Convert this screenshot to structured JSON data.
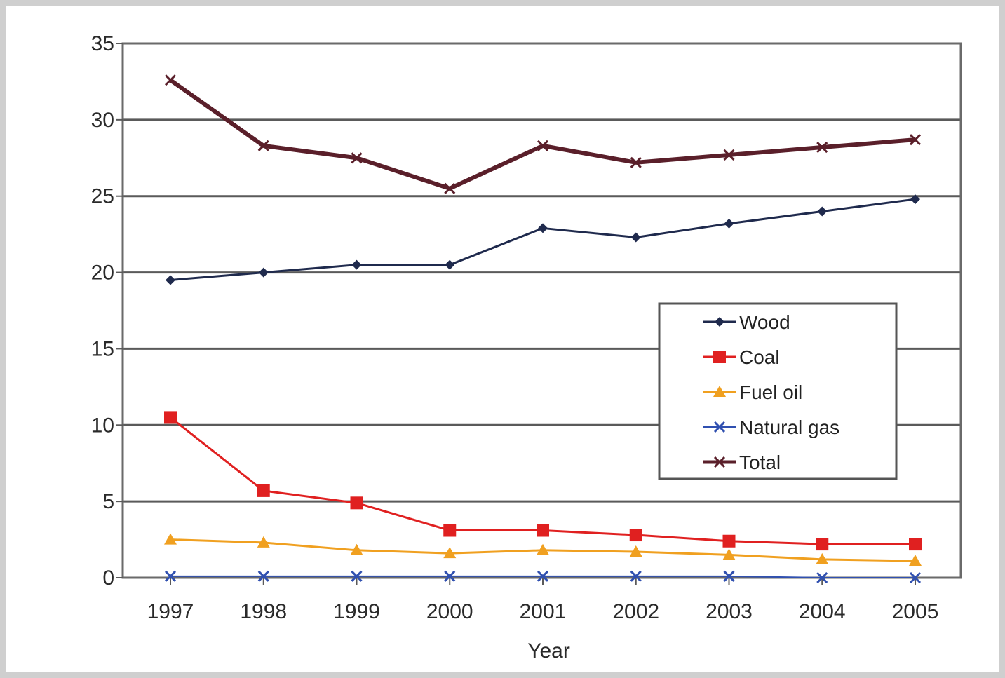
{
  "chart_data": {
    "type": "line",
    "title": "",
    "xlabel": "Year",
    "ylabel": "",
    "categories": [
      "1997",
      "1998",
      "1999",
      "2000",
      "2001",
      "2002",
      "2003",
      "2004",
      "2005"
    ],
    "ylim": [
      0,
      35
    ],
    "yticks": [
      "0",
      "5",
      "10",
      "15",
      "20",
      "25",
      "30",
      "35"
    ],
    "grid": "horizontal",
    "legend_position": "right-center",
    "series": [
      {
        "name": "Wood",
        "color": "#1f2a4d",
        "marker": "diamond",
        "values": [
          19.5,
          20.0,
          20.5,
          20.5,
          22.9,
          22.3,
          23.2,
          24.0,
          24.8
        ]
      },
      {
        "name": "Coal",
        "color": "#e02020",
        "marker": "square",
        "values": [
          10.5,
          5.7,
          4.9,
          3.1,
          3.1,
          2.8,
          2.4,
          2.2,
          2.2
        ]
      },
      {
        "name": "Fuel oil",
        "color": "#f0a020",
        "marker": "triangle",
        "values": [
          2.5,
          2.3,
          1.8,
          1.6,
          1.8,
          1.7,
          1.5,
          1.2,
          1.1
        ]
      },
      {
        "name": "Natural gas",
        "color": "#3050b0",
        "marker": "x",
        "values": [
          0.1,
          0.1,
          0.1,
          0.1,
          0.1,
          0.1,
          0.1,
          0.0,
          0.0
        ]
      },
      {
        "name": "Total",
        "color": "#5a1f2a",
        "marker": "x",
        "values": [
          32.6,
          28.3,
          27.5,
          25.5,
          28.3,
          27.2,
          27.7,
          28.2,
          28.7
        ]
      }
    ]
  }
}
